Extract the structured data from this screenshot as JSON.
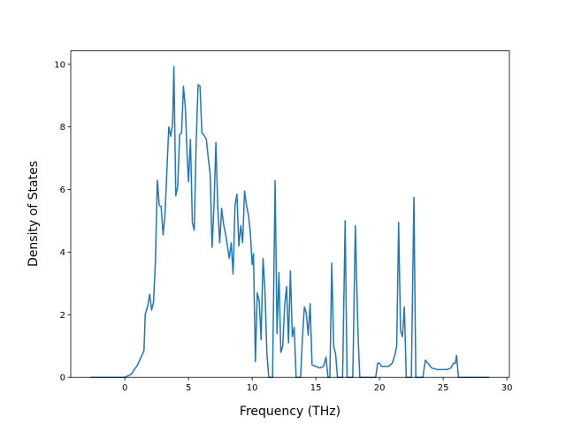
{
  "chart_data": {
    "type": "line",
    "xlabel": "Frequency (THz)",
    "ylabel": "Density of States",
    "x": [
      -2.7,
      0,
      0.5,
      1,
      1.5,
      1.6,
      1.8,
      1.95,
      2.1,
      2.25,
      2.4,
      2.55,
      2.7,
      2.85,
      3.0,
      3.15,
      3.3,
      3.45,
      3.6,
      3.75,
      3.85,
      4.0,
      4.15,
      4.3,
      4.45,
      4.6,
      4.75,
      4.9,
      5.0,
      5.15,
      5.3,
      5.45,
      5.6,
      5.75,
      5.9,
      6.05,
      6.2,
      6.4,
      6.55,
      6.7,
      6.85,
      7.0,
      7.15,
      7.3,
      7.45,
      7.6,
      7.75,
      7.9,
      8.05,
      8.2,
      8.35,
      8.5,
      8.65,
      8.8,
      8.95,
      9.1,
      9.25,
      9.4,
      9.55,
      9.7,
      9.85,
      10.0,
      10.1,
      10.25,
      10.4,
      10.55,
      10.7,
      10.85,
      11.0,
      11.15,
      11.3,
      11.6,
      11.8,
      11.95,
      12.1,
      12.25,
      12.4,
      12.55,
      12.7,
      12.85,
      13.0,
      13.15,
      13.3,
      13.45,
      13.8,
      13.95,
      14.1,
      14.25,
      14.4,
      14.55,
      14.7,
      15.0,
      15.3,
      15.6,
      15.8,
      15.95,
      16.1,
      16.25,
      16.4,
      16.55,
      16.7,
      17.1,
      17.3,
      17.45,
      17.9,
      18.1,
      18.3,
      18.45,
      19.7,
      19.85,
      20.0,
      20.15,
      20.7,
      21.0,
      21.2,
      21.35,
      21.5,
      21.65,
      21.8,
      21.95,
      22.1,
      22.5,
      22.7,
      22.85,
      23.4,
      23.6,
      23.8,
      24.1,
      24.5,
      25.3,
      25.6,
      25.8,
      25.95,
      26.05,
      26.2,
      28.6
    ],
    "series": [
      {
        "color": "#1f77b4",
        "values": [
          0,
          0,
          0.1,
          0.4,
          0.85,
          2.0,
          2.3,
          2.65,
          2.15,
          2.4,
          3.7,
          6.3,
          5.5,
          5.45,
          4.55,
          5.2,
          6.6,
          8.0,
          7.7,
          8.1,
          9.93,
          5.8,
          6.1,
          7.75,
          7.8,
          9.3,
          8.6,
          7.0,
          6.25,
          7.6,
          4.95,
          4.7,
          7.5,
          9.35,
          9.3,
          7.8,
          7.75,
          7.6,
          7.0,
          6.5,
          4.15,
          5.5,
          7.5,
          5.4,
          4.3,
          5.4,
          4.9,
          4.6,
          4.2,
          3.8,
          4.3,
          3.3,
          5.5,
          5.85,
          4.2,
          4.85,
          4.3,
          5.95,
          5.5,
          5.2,
          4.65,
          3.6,
          3.95,
          0.5,
          2.7,
          2.45,
          1.2,
          3.8,
          2.8,
          0.8,
          0,
          0,
          6.28,
          1.4,
          3.35,
          0.8,
          1.0,
          2.3,
          2.9,
          1.1,
          3.4,
          1.3,
          1.6,
          0,
          0,
          1.3,
          2.25,
          2.05,
          1.35,
          2.35,
          0.4,
          0.35,
          0.3,
          0.35,
          0.65,
          0,
          0,
          3.65,
          1.0,
          0.75,
          0,
          0,
          5.0,
          0,
          0,
          4.85,
          1.5,
          0,
          0,
          0.45,
          0.45,
          0.35,
          0.35,
          0.45,
          0.7,
          1.0,
          4.95,
          1.5,
          1.3,
          2.25,
          0,
          0,
          5.75,
          0,
          0,
          0.55,
          0.45,
          0.3,
          0.25,
          0.25,
          0.3,
          0.45,
          0.45,
          0.7,
          0,
          0
        ]
      }
    ],
    "xlim": [
      -4.25,
      30.2
    ],
    "ylim": [
      0,
      10.43
    ],
    "xticks": [
      0,
      5,
      10,
      15,
      20,
      25,
      30
    ],
    "yticks": [
      0,
      2,
      4,
      6,
      8,
      10
    ]
  }
}
